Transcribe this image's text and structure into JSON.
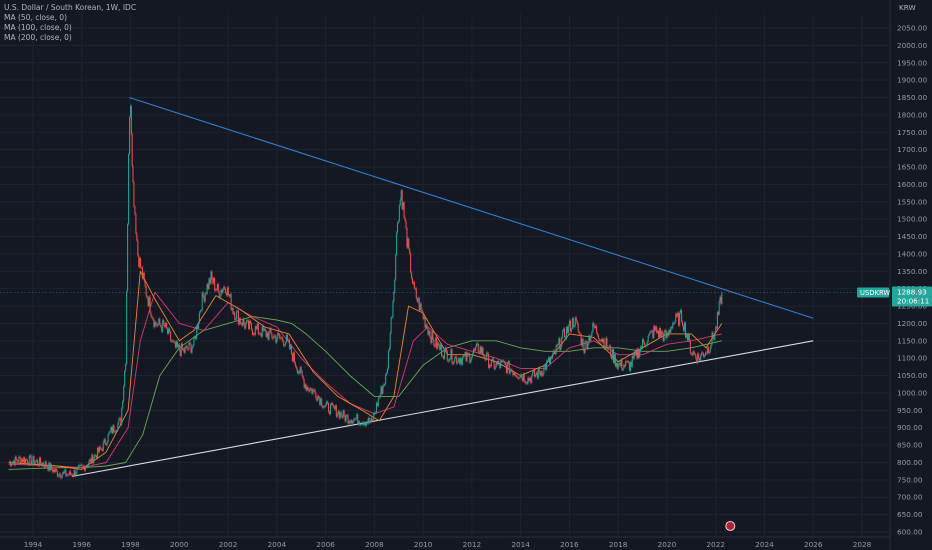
{
  "chart_data": {
    "type": "line",
    "title": "U.S. Dollar / South Korean, 1W, IDC",
    "legend": [
      {
        "name": "MA (50, close, 0)",
        "color": "#e8892d"
      },
      {
        "name": "MA (100, close, 0)",
        "color": "#d23b6f"
      },
      {
        "name": "MA (200, close, 0)",
        "color": "#66aa55"
      }
    ],
    "currency": "KRW",
    "symbol": "USDKRW",
    "last_price": "1288.93",
    "countdown": "20:06:11",
    "ylim": [
      600,
      2100
    ],
    "xlim": [
      1993.0,
      2029.0
    ],
    "y_ticks": [
      "600.00",
      "650.00",
      "700.00",
      "750.00",
      "800.00",
      "850.00",
      "900.00",
      "950.00",
      "1000.00",
      "1050.00",
      "1100.00",
      "1150.00",
      "1200.00",
      "1250.00",
      "1300.00",
      "1350.00",
      "1400.00",
      "1450.00",
      "1500.00",
      "1550.00",
      "1600.00",
      "1650.00",
      "1700.00",
      "1750.00",
      "1800.00",
      "1850.00",
      "1900.00",
      "1950.00",
      "2000.00",
      "2050.00"
    ],
    "x_ticks": [
      "1994",
      "1996",
      "1998",
      "2000",
      "2002",
      "2004",
      "2006",
      "2008",
      "2010",
      "2012",
      "2014",
      "2016",
      "2018",
      "2020",
      "2022",
      "2024",
      "2026",
      "2028"
    ],
    "price": {
      "x": [
        1993.0,
        1993.5,
        1994.0,
        1994.5,
        1995.0,
        1995.5,
        1995.8,
        1996.3,
        1996.8,
        1997.2,
        1997.6,
        1997.8,
        1997.92,
        1998.0,
        1998.1,
        1998.3,
        1998.6,
        1999.0,
        1999.4,
        1999.8,
        2000.2,
        2000.6,
        2000.9,
        2001.1,
        2001.3,
        2001.6,
        2001.9,
        2002.2,
        2002.5,
        2002.8,
        2003.2,
        2003.6,
        2004.0,
        2004.4,
        2004.8,
        2005.2,
        2005.6,
        2006.0,
        2006.4,
        2006.8,
        2007.2,
        2007.6,
        2007.9,
        2008.2,
        2008.5,
        2008.8,
        2008.95,
        2009.1,
        2009.3,
        2009.6,
        2010.0,
        2010.4,
        2010.8,
        2011.3,
        2011.8,
        2012.3,
        2012.8,
        2013.3,
        2013.8,
        2014.3,
        2014.8,
        2015.3,
        2015.8,
        2016.2,
        2016.6,
        2017.0,
        2017.5,
        2018.0,
        2018.5,
        2019.0,
        2019.5,
        2020.0,
        2020.2,
        2020.6,
        2021.0,
        2021.3,
        2021.7,
        2022.0,
        2022.25
      ],
      "y": [
        800,
        810,
        805,
        795,
        770,
        765,
        775,
        800,
        840,
        890,
        920,
        1100,
        1700,
        1850,
        1600,
        1400,
        1300,
        1200,
        1190,
        1130,
        1120,
        1140,
        1260,
        1300,
        1330,
        1290,
        1310,
        1240,
        1210,
        1190,
        1180,
        1170,
        1160,
        1150,
        1080,
        1020,
        1000,
        960,
        950,
        930,
        925,
        920,
        915,
        990,
        1050,
        1300,
        1500,
        1580,
        1460,
        1300,
        1220,
        1150,
        1120,
        1100,
        1100,
        1130,
        1080,
        1080,
        1060,
        1040,
        1060,
        1100,
        1170,
        1210,
        1130,
        1190,
        1140,
        1080,
        1080,
        1140,
        1180,
        1160,
        1200,
        1220,
        1120,
        1100,
        1130,
        1180,
        1289
      ]
    },
    "ma50": {
      "x": [
        1993.0,
        1995.0,
        1996.0,
        1997.0,
        1997.9,
        1998.4,
        1999.0,
        2000.0,
        2000.6,
        2001.5,
        2002.5,
        2003.5,
        2004.5,
        2005.5,
        2006.5,
        2007.5,
        2008.2,
        2008.8,
        2009.4,
        2010.0,
        2011.0,
        2012.0,
        2013.0,
        2014.0,
        2015.0,
        2016.0,
        2017.0,
        2018.0,
        2019.0,
        2020.0,
        2021.0,
        2021.6,
        2022.25
      ],
      "y": [
        800,
        790,
        780,
        830,
        950,
        1350,
        1270,
        1150,
        1180,
        1280,
        1240,
        1190,
        1170,
        1060,
        990,
        950,
        920,
        990,
        1250,
        1230,
        1110,
        1110,
        1090,
        1050,
        1080,
        1170,
        1160,
        1090,
        1130,
        1170,
        1170,
        1130,
        1200
      ]
    },
    "ma100": {
      "x": [
        1993.0,
        1995.0,
        1996.0,
        1997.0,
        1997.9,
        1998.4,
        1999.0,
        2000.0,
        2001.0,
        2002.0,
        2003.0,
        2004.0,
        2005.0,
        2006.0,
        2007.0,
        2008.0,
        2008.8,
        2009.6,
        2010.2,
        2011.0,
        2012.0,
        2013.0,
        2014.0,
        2015.0,
        2016.0,
        2017.0,
        2018.0,
        2019.0,
        2020.0,
        2021.0,
        2022.25
      ],
      "y": [
        795,
        790,
        785,
        800,
        900,
        1150,
        1290,
        1200,
        1180,
        1260,
        1220,
        1190,
        1100,
        1030,
        970,
        940,
        960,
        1150,
        1190,
        1140,
        1120,
        1100,
        1070,
        1070,
        1130,
        1150,
        1110,
        1110,
        1140,
        1150,
        1170
      ]
    },
    "ma200": {
      "x": [
        1993.0,
        1995.0,
        1996.0,
        1997.0,
        1997.8,
        1998.5,
        1999.2,
        2000.0,
        2001.0,
        2002.0,
        2003.0,
        2004.0,
        2004.6,
        2005.2,
        2006.0,
        2007.0,
        2008.0,
        2009.0,
        2010.0,
        2011.0,
        2012.0,
        2013.0,
        2014.0,
        2015.0,
        2016.0,
        2017.0,
        2018.0,
        2019.0,
        2020.0,
        2021.0,
        2022.25
      ],
      "y": [
        780,
        785,
        785,
        790,
        800,
        880,
        1050,
        1130,
        1180,
        1200,
        1220,
        1210,
        1200,
        1170,
        1120,
        1050,
        990,
        990,
        1080,
        1130,
        1150,
        1150,
        1130,
        1120,
        1120,
        1130,
        1130,
        1120,
        1120,
        1130,
        1150
      ]
    },
    "upper_trendline": {
      "x": [
        1997.95,
        2026.0
      ],
      "y": [
        1850,
        1215
      ]
    },
    "lower_trendline": {
      "x": [
        1995.6,
        2026.0
      ],
      "y": [
        760,
        1150
      ]
    },
    "last_price_line_value": 1289
  }
}
